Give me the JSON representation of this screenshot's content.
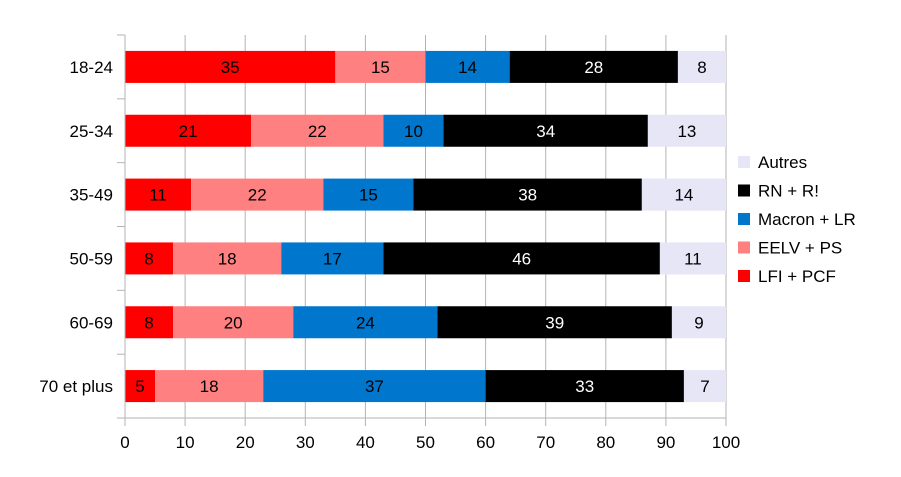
{
  "chart_data": {
    "type": "bar",
    "orientation": "horizontal",
    "stacked": true,
    "categories": [
      "18-24",
      "25-34",
      "35-49",
      "50-59",
      "60-69",
      "70 et plus"
    ],
    "series": [
      {
        "name": "LFI + PCF",
        "color": "#ff0000",
        "label_color": "#000000",
        "values": [
          35,
          21,
          11,
          8,
          8,
          5
        ]
      },
      {
        "name": "EELV + PS",
        "color": "#ff8080",
        "label_color": "#000000",
        "values": [
          15,
          22,
          22,
          18,
          20,
          18
        ]
      },
      {
        "name": "Macron + LR",
        "color": "#0077cc",
        "label_color": "#000000",
        "values": [
          14,
          10,
          15,
          17,
          24,
          37
        ]
      },
      {
        "name": "RN + R!",
        "color": "#000000",
        "label_color": "#ffffff",
        "values": [
          28,
          34,
          38,
          46,
          39,
          33
        ]
      },
      {
        "name": "Autres",
        "color": "#e6e6f7",
        "label_color": "#000000",
        "values": [
          8,
          13,
          14,
          11,
          9,
          7
        ]
      }
    ],
    "xlim": [
      0,
      100
    ],
    "xticks": [
      "0",
      "10",
      "20",
      "30",
      "40",
      "50",
      "60",
      "70",
      "80",
      "90",
      "100"
    ],
    "grid": true,
    "legend_position": "right",
    "legend_order": [
      "Autres",
      "RN + R!",
      "Macron + LR",
      "EELV + PS",
      "LFI + PCF"
    ],
    "title": "",
    "xlabel": "",
    "ylabel": ""
  }
}
